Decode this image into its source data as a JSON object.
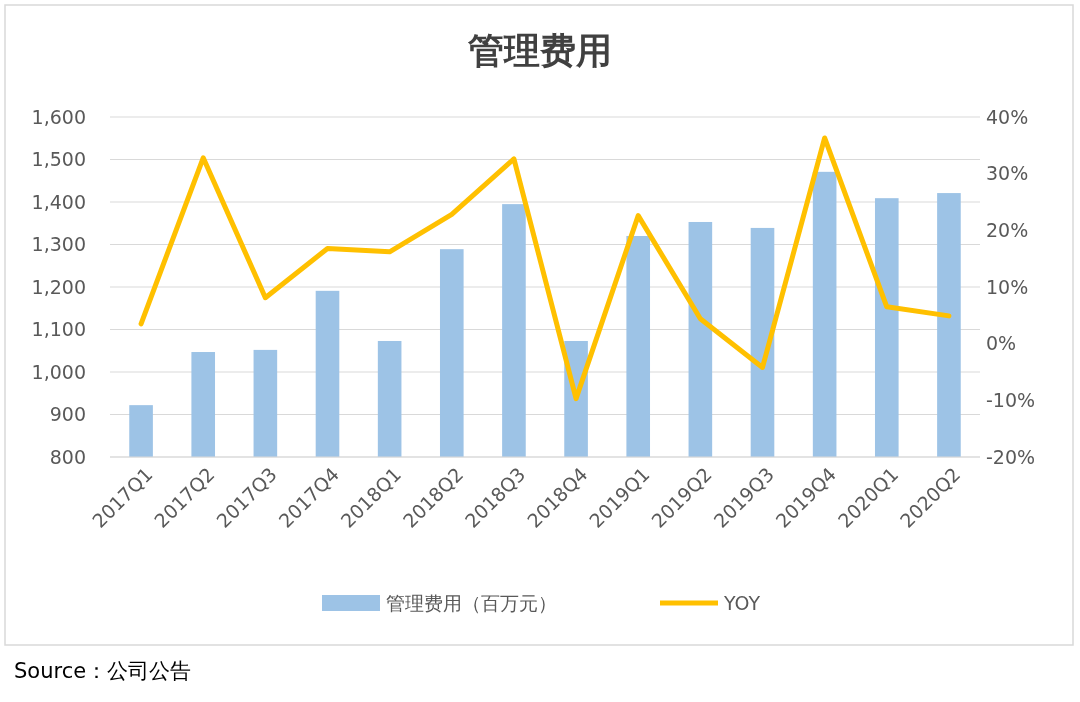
{
  "chart_data": {
    "type": "bar",
    "title": "管理费用",
    "categories": [
      "2017Q1",
      "2017Q2",
      "2017Q3",
      "2017Q4",
      "2018Q1",
      "2018Q2",
      "2018Q3",
      "2018Q4",
      "2019Q1",
      "2019Q2",
      "2019Q3",
      "2019Q4",
      "2020Q1",
      "2020Q2"
    ],
    "series": [
      {
        "name": "管理费用（百万元）",
        "color": "#9dc3e6",
        "values": [
          922,
          1047,
          1052,
          1191,
          1073,
          1289,
          1395,
          1073,
          1320,
          1353,
          1339,
          1471,
          1409,
          1421
        ]
      },
      {
        "name": "YOY",
        "type": "line",
        "axis": "y2",
        "color": "#ffc000",
        "values": [
          3.5,
          32.8,
          8.1,
          16.8,
          16.2,
          22.8,
          32.6,
          -9.7,
          22.6,
          4.4,
          -4.2,
          36.3,
          6.5,
          4.9
        ]
      }
    ],
    "ylim": [
      800,
      1600
    ],
    "yticks": [
      {
        "value": 800,
        "label": "800"
      },
      {
        "value": 900,
        "label": "900"
      },
      {
        "value": 1000,
        "label": "1,000"
      },
      {
        "value": 1100,
        "label": "1,100"
      },
      {
        "value": 1200,
        "label": "1,200"
      },
      {
        "value": 1300,
        "label": "1,300"
      },
      {
        "value": 1400,
        "label": "1,400"
      },
      {
        "value": 1500,
        "label": "1,500"
      },
      {
        "value": 1600,
        "label": "1,600"
      }
    ],
    "y2lim": [
      -20,
      40
    ],
    "y2ticks": [
      {
        "value": -20,
        "label": "-20%"
      },
      {
        "value": -10,
        "label": "-10%"
      },
      {
        "value": 0,
        "label": "0%"
      },
      {
        "value": 10,
        "label": "10%"
      },
      {
        "value": 20,
        "label": "20%"
      },
      {
        "value": 30,
        "label": "30%"
      },
      {
        "value": 40,
        "label": "40%"
      }
    ],
    "grid": "y",
    "legend": "bottom",
    "marker": "none",
    "annotations": [
      "Source：公司公告"
    ]
  }
}
